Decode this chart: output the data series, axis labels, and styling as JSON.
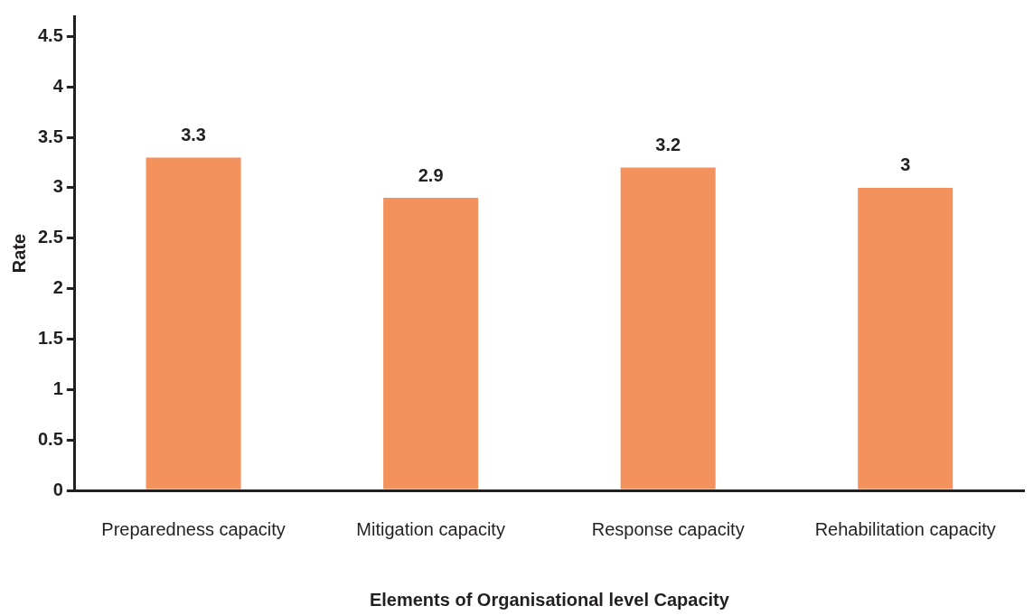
{
  "chart_data": {
    "type": "bar",
    "xlabel": "Elements of Organisational level Capacity",
    "ylabel": "Rate",
    "categories": [
      "Preparedness capacity",
      "Mitigation capacity",
      "Response capacity",
      "Rehabilitation capacity"
    ],
    "values": [
      3.3,
      2.9,
      3.2,
      3
    ],
    "color": "#f4925e",
    "ylim": [
      0,
      4.7
    ],
    "yticks": [
      0,
      0.5,
      1,
      1.5,
      2,
      2.5,
      3,
      3.5,
      4,
      4.5
    ],
    "grid": false,
    "legend": false,
    "data_labels": true
  }
}
